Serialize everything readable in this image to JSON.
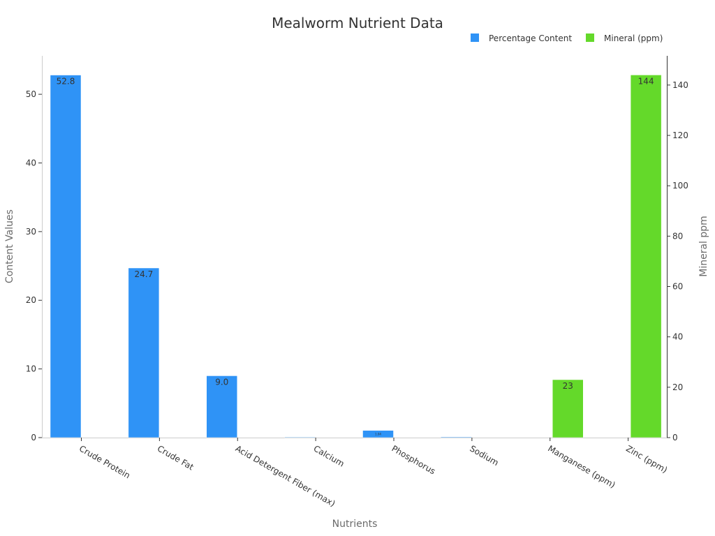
{
  "chart_data": {
    "type": "bar",
    "title": "Mealworm Nutrient Data",
    "xlabel": "Nutrients",
    "ylabel": "Content Values",
    "y2label": "Mineral ppm",
    "categories": [
      "Crude Protein",
      "Crude Fat",
      "Acid Detergent Fiber (max)",
      "Calcium",
      "Phosphorus",
      "Sodium",
      "Manganese (ppm)",
      "Zinc (ppm)"
    ],
    "ylim": [
      0,
      55.6
    ],
    "y2lim": [
      0,
      151.6
    ],
    "yticks": [
      0,
      10,
      20,
      30,
      40,
      50
    ],
    "y2ticks": [
      0,
      20,
      40,
      60,
      80,
      100,
      120,
      140
    ],
    "legend_position": "top-right",
    "grid": false,
    "series": [
      {
        "name": "Percentage Content",
        "axis": "left",
        "color": "#2f93f6",
        "values": [
          52.8,
          24.7,
          9.0,
          0.05,
          1.04,
          0.1,
          null,
          null
        ],
        "labels": [
          "52.8",
          "24.7",
          "9.0",
          "",
          "1.04",
          "",
          "",
          ""
        ]
      },
      {
        "name": "Mineral (ppm)",
        "axis": "right",
        "color": "#64d92a",
        "values": [
          null,
          null,
          null,
          null,
          null,
          null,
          23,
          144
        ],
        "labels": [
          "",
          "",
          "",
          "",
          "",
          "",
          "23",
          "144"
        ]
      }
    ]
  }
}
